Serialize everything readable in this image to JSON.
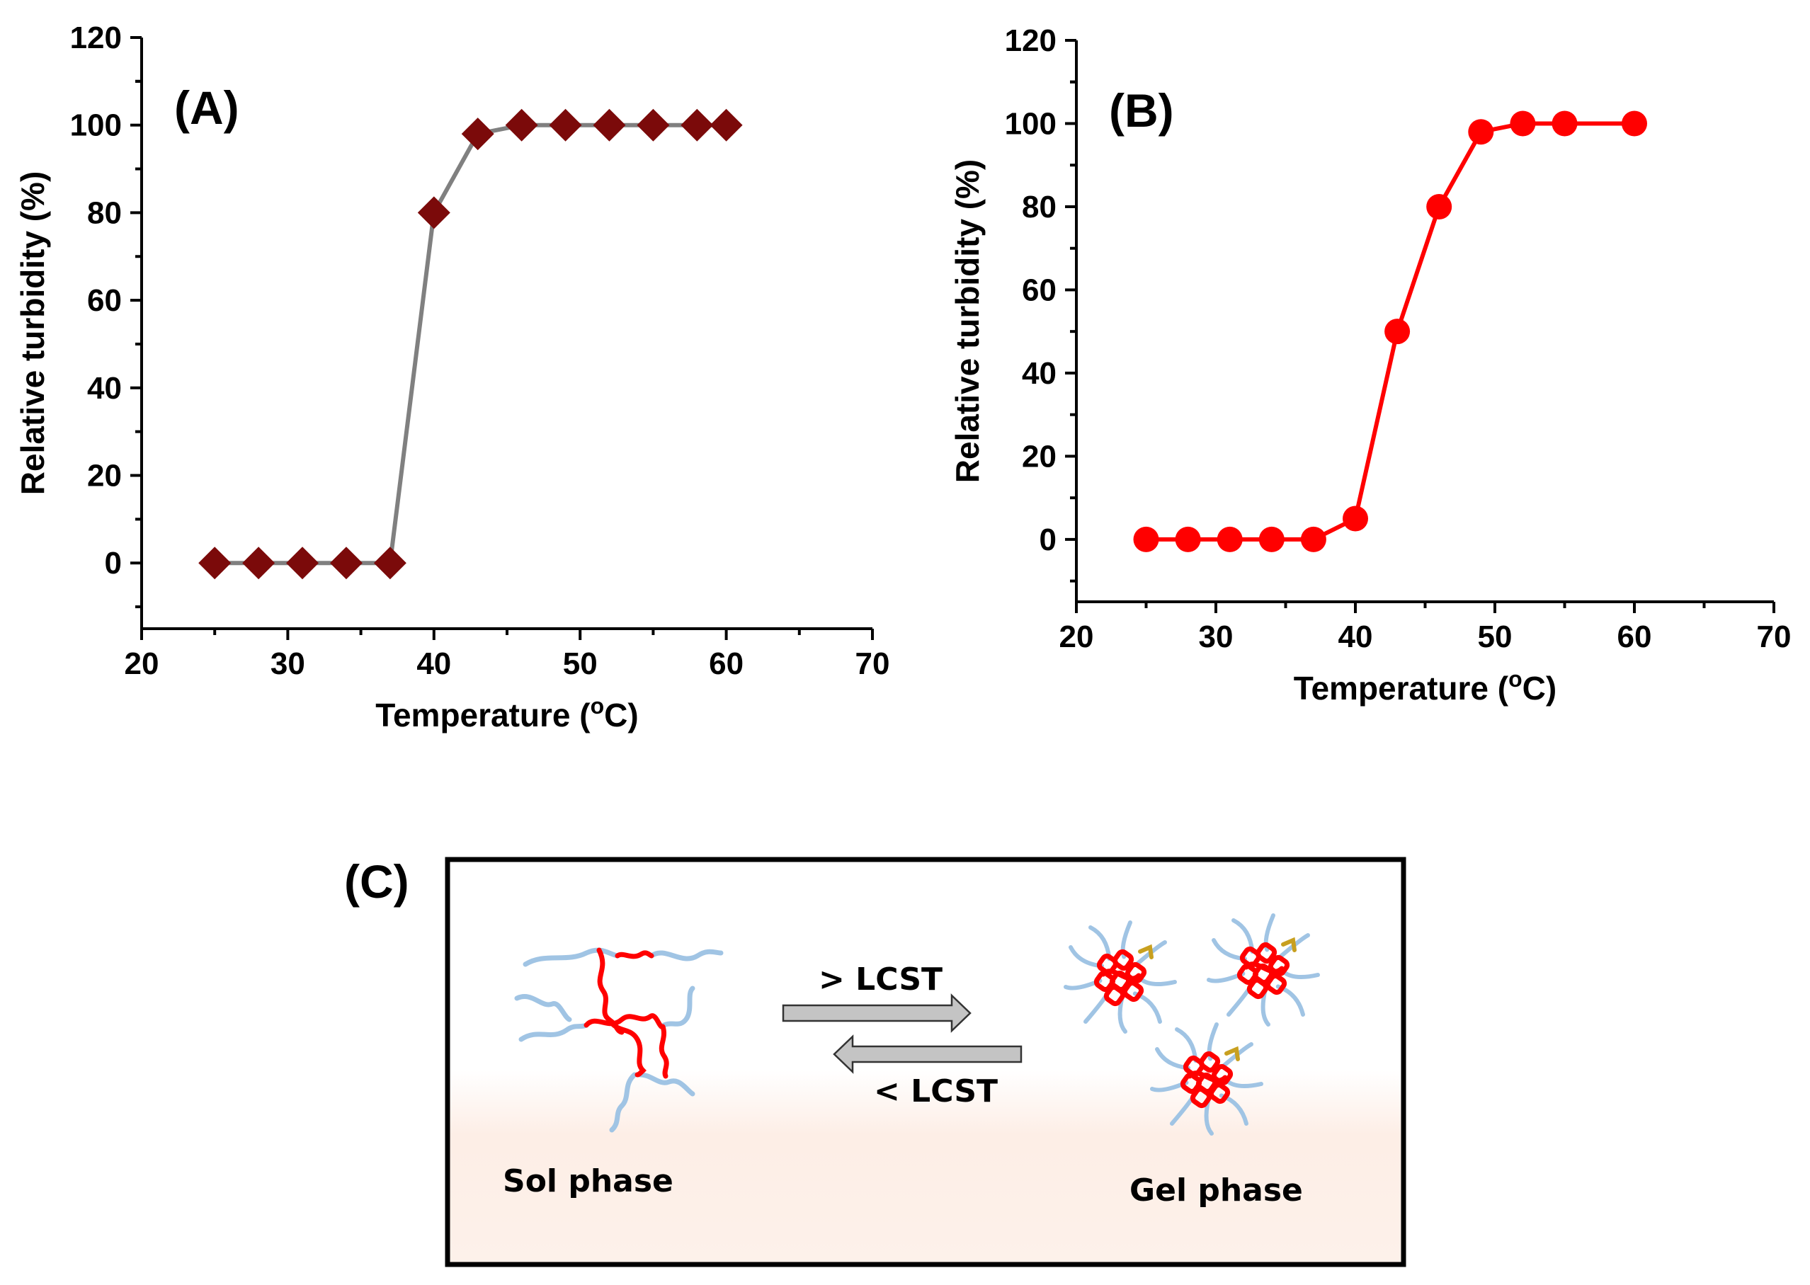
{
  "chart_data": [
    {
      "panel_label": "(A)",
      "type": "line",
      "xlabel": "Temperature (",
      "xlabel_sup": "o",
      "xlabel_end": "C)",
      "ylabel": "Relative turbidity (%)",
      "xlim": [
        20,
        70
      ],
      "ylim": [
        -15,
        120
      ],
      "xticks": [
        "20",
        "30",
        "40",
        "50",
        "60",
        "70"
      ],
      "yticks": [
        "0",
        "20",
        "40",
        "60",
        "80",
        "100",
        "120"
      ],
      "marker": "diamond",
      "marker_color": "#7b0a0a",
      "line_color": "#808080",
      "x": [
        25,
        28,
        31,
        34,
        37,
        40,
        43,
        46,
        49,
        52,
        55,
        58,
        60
      ],
      "y": [
        0,
        0,
        0,
        0,
        0,
        80,
        98,
        100,
        100,
        100,
        100,
        100,
        100
      ],
      "grid": false,
      "legend": "none"
    },
    {
      "panel_label": "(B)",
      "type": "line",
      "xlabel": "Temperature (",
      "xlabel_sup": "o",
      "xlabel_end": "C)",
      "ylabel": "Relative turbidity (%)",
      "xlim": [
        20,
        70
      ],
      "ylim": [
        -15,
        120
      ],
      "xticks": [
        "20",
        "30",
        "40",
        "50",
        "60",
        "70"
      ],
      "yticks": [
        "0",
        "20",
        "40",
        "60",
        "80",
        "100",
        "120"
      ],
      "marker": "circle",
      "marker_color": "#ff0000",
      "line_color": "#ff0000",
      "x": [
        25,
        28,
        31,
        34,
        37,
        40,
        43,
        46,
        49,
        52,
        55,
        60
      ],
      "y": [
        0,
        0,
        0,
        0,
        0,
        5,
        50,
        80,
        98,
        100,
        100,
        100
      ],
      "grid": false,
      "legend": "none"
    }
  ],
  "diagram": {
    "panel_label": "(C)",
    "forward_label": "> LCST",
    "reverse_label": "< LCST",
    "left_label": "Sol phase",
    "right_label": "Gel phase",
    "chain_colors": {
      "hydrophilic": "#a0c4e4",
      "hydrophobic": "#ff0000",
      "linker": "#c8a020"
    }
  }
}
